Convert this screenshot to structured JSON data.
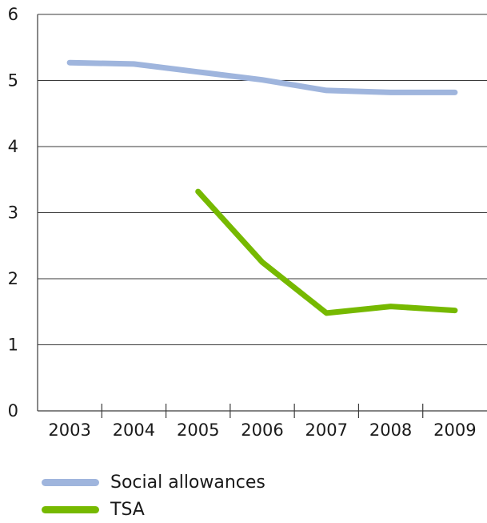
{
  "chart_data": {
    "type": "line",
    "x": [
      "2003",
      "2004",
      "2005",
      "2006",
      "2007",
      "2008",
      "2009"
    ],
    "ylim": [
      0,
      6
    ],
    "yticks": [
      "0",
      "1",
      "2",
      "3",
      "4",
      "5",
      "6"
    ],
    "grid": true,
    "legend_position": "bottom-left",
    "series": [
      {
        "name": "Social allowances",
        "color": "#9fb5dd",
        "values": [
          5.27,
          5.25,
          5.13,
          5.01,
          4.85,
          4.82,
          4.82
        ]
      },
      {
        "name": "TSA",
        "color": "#76b900",
        "values": [
          null,
          null,
          3.32,
          2.25,
          1.48,
          1.58,
          1.52
        ]
      }
    ]
  }
}
